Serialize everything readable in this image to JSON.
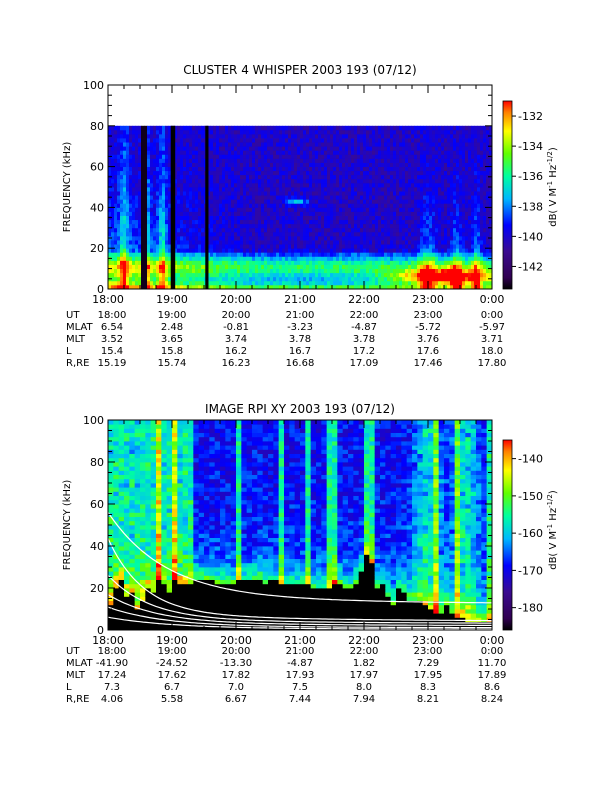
{
  "chart_data": [
    {
      "type": "heatmap",
      "title": "CLUSTER 4 WHISPER 2003 193 (07/12)",
      "ylabel": "FREQUENCY (kHz)",
      "ylim": [
        0,
        100
      ],
      "yticks": [
        "0",
        "20",
        "40",
        "60",
        "80",
        "100"
      ],
      "xlim_hours": [
        18,
        24
      ],
      "xticks": [
        "18:00",
        "19:00",
        "20:00",
        "21:00",
        "22:00",
        "23:00",
        "0:00"
      ],
      "data_top_khz": 80,
      "colorbar": {
        "label": "dB( V M^-1 Hz^-1/2)",
        "range": [
          -143.5,
          -131
        ],
        "ticks": [
          "-132",
          "-134",
          "-136",
          "-138",
          "-140",
          "-142"
        ]
      },
      "ephemeris": [
        {
          "name": "UT",
          "values": [
            "18:00",
            "19:00",
            "20:00",
            "21:00",
            "22:00",
            "23:00",
            "0:00"
          ]
        },
        {
          "name": "MLAT",
          "values": [
            "6.54",
            "2.48",
            "-0.81",
            "-3.23",
            "-4.87",
            "-5.72",
            "-5.97"
          ]
        },
        {
          "name": "MLT",
          "values": [
            "3.52",
            "3.65",
            "3.74",
            "3.78",
            "3.78",
            "3.76",
            "3.71"
          ]
        },
        {
          "name": "L",
          "values": [
            "15.4",
            "15.8",
            "16.2",
            "16.7",
            "17.2",
            "17.6",
            "18.0"
          ]
        },
        {
          "name": "R,RE",
          "values": [
            "15.19",
            "15.74",
            "16.23",
            "16.68",
            "17.09",
            "17.46",
            "17.80"
          ]
        }
      ]
    },
    {
      "type": "heatmap",
      "title": "IMAGE RPI XY 2003 193 (07/12)",
      "ylabel": "FREQUENCY (kHz)",
      "ylim": [
        0,
        100
      ],
      "yticks": [
        "0",
        "20",
        "40",
        "60",
        "80",
        "100"
      ],
      "xlim_hours": [
        18,
        24
      ],
      "xticks": [
        "18:00",
        "19:00",
        "20:00",
        "21:00",
        "22:00",
        "23:00",
        "0:00"
      ],
      "colorbar": {
        "label": "dB( V M^-1 Hz^-1/2)",
        "range": [
          -186,
          -135
        ],
        "ticks": [
          "-140",
          "-150",
          "-160",
          "-170",
          "-180"
        ]
      },
      "ephemeris": [
        {
          "name": "UT",
          "values": [
            "18:00",
            "19:00",
            "20:00",
            "21:00",
            "22:00",
            "23:00",
            "0:00"
          ]
        },
        {
          "name": "MLAT",
          "values": [
            "-41.90",
            "-24.52",
            "-13.30",
            "-4.87",
            "1.82",
            "7.29",
            "11.70"
          ]
        },
        {
          "name": "MLT",
          "values": [
            "17.24",
            "17.62",
            "17.82",
            "17.93",
            "17.97",
            "17.95",
            "17.89"
          ]
        },
        {
          "name": "L",
          "values": [
            "7.3",
            "6.7",
            "7.0",
            "7.5",
            "8.0",
            "8.3",
            "8.6"
          ]
        },
        {
          "name": "R,RE",
          "values": [
            "4.06",
            "5.58",
            "6.67",
            "7.44",
            "7.94",
            "8.21",
            "8.24"
          ]
        }
      ]
    }
  ]
}
